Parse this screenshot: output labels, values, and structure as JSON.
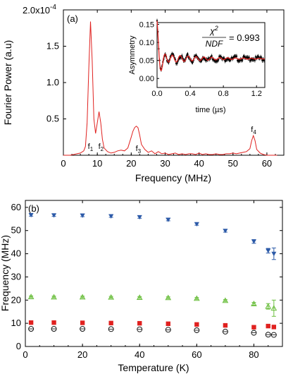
{
  "chart_data": [
    {
      "panel": "(a)",
      "type": "line",
      "xlabel": "Frequency (MHz)",
      "ylabel": "Fourier Power (a.u)",
      "xlim": [
        0,
        65
      ],
      "ylim": [
        0,
        2.0
      ],
      "y_multiplier": "×10^-4",
      "y_multiplier_label": "-4",
      "y_top_label": "2.0x10",
      "xticks": [
        "0",
        "10",
        "20",
        "30",
        "40",
        "50",
        "60"
      ],
      "yticks": [
        "0.5",
        "1.0",
        "1.5"
      ],
      "color": "#e0211f",
      "x": [
        0,
        1,
        2,
        3,
        4,
        5,
        6,
        6.5,
        7,
        7.5,
        8,
        8.5,
        9,
        9.5,
        10,
        10.5,
        11,
        11.5,
        12,
        13,
        14,
        15,
        16,
        17,
        18,
        19,
        20,
        20.5,
        21,
        21.5,
        22,
        22.5,
        23,
        24,
        25,
        26,
        27,
        28,
        29,
        30,
        31,
        32,
        33,
        34,
        35,
        36,
        37,
        38,
        39,
        40,
        41,
        42,
        43,
        44,
        45,
        46,
        47,
        48,
        49,
        50,
        51,
        52,
        53,
        54,
        55,
        55.5,
        56,
        56.5,
        57,
        58,
        59,
        60,
        61,
        62,
        63
      ],
      "y": [
        0,
        0,
        0,
        0.01,
        0.02,
        0.03,
        0.06,
        0.12,
        0.45,
        1.2,
        1.84,
        1.3,
        0.5,
        0.3,
        0.45,
        0.6,
        0.45,
        0.22,
        0.1,
        0.05,
        0.03,
        0.04,
        0.06,
        0.07,
        0.06,
        0.1,
        0.25,
        0.33,
        0.38,
        0.4,
        0.38,
        0.28,
        0.15,
        0.08,
        0.04,
        0.06,
        0.02,
        0.05,
        0.02,
        0.03,
        0.01,
        0.02,
        0.03,
        0.01,
        0.02,
        0.01,
        0.02,
        0.02,
        0.01,
        0.03,
        0.01,
        0.02,
        0.01,
        0.01,
        0.02,
        0.01,
        0.01,
        0.02,
        0.02,
        0.03,
        0.02,
        0.03,
        0.04,
        0.05,
        0.09,
        0.2,
        0.27,
        0.2,
        0.08,
        0.03,
        0.01,
        0,
        0,
        0,
        0
      ],
      "annotations": [
        {
          "label": "f",
          "sub": "1",
          "x": 7.2,
          "y": 0.07
        },
        {
          "label": "f",
          "sub": "2",
          "x": 10.3,
          "y": 0.07
        },
        {
          "label": "f",
          "sub": "3",
          "x": 21.3,
          "y": 0.04
        },
        {
          "label": "f",
          "sub": "4",
          "x": 55.3,
          "y": 0.3
        }
      ],
      "inset": {
        "type": "scatter-with-fit",
        "xlabel": "time (µs)",
        "ylabel": "Asymmetry",
        "xlim": [
          0,
          1.3
        ],
        "ylim": [
          -0.025,
          0.155
        ],
        "xticks": [
          "0.0",
          "0.4",
          "0.8",
          "1.2"
        ],
        "yticks": [
          "0.00",
          "0.05",
          "0.10",
          "0.15"
        ],
        "chi_label_num": "χ",
        "chi_label_sup": "2",
        "chi_label_den": "NDF",
        "chi_value": "= 0.993",
        "data_color": "#000000",
        "fit_color": "#e0211f"
      }
    },
    {
      "panel": "(b)",
      "type": "scatter",
      "xlabel": "Temperature (K)",
      "ylabel": "Frequency (MHz)",
      "xlim": [
        0,
        90
      ],
      "ylim": [
        0,
        63
      ],
      "xticks": [
        "0",
        "20",
        "40",
        "60",
        "80"
      ],
      "yticks": [
        "0",
        "10",
        "20",
        "30",
        "40",
        "50",
        "60"
      ],
      "series": [
        {
          "marker": "triangle-down-filled",
          "color": "#2c5aa8",
          "x": [
            2,
            10,
            20,
            30,
            40,
            50,
            60,
            70,
            80,
            85,
            87
          ],
          "y": [
            56.7,
            56.6,
            56.5,
            56.2,
            55.8,
            54.7,
            52.8,
            49.9,
            45.3,
            41.3,
            40
          ],
          "err": [
            0.5,
            0.5,
            0.5,
            0.5,
            0.5,
            0.5,
            0.5,
            0.6,
            0.8,
            1,
            2.5
          ]
        },
        {
          "marker": "triangle-up-open",
          "color": "#6cbf3f",
          "x": [
            2,
            10,
            20,
            30,
            40,
            50,
            60,
            70,
            80,
            85,
            87
          ],
          "y": [
            21.4,
            21.3,
            21.3,
            21.2,
            21.1,
            21,
            20.7,
            19.8,
            18.4,
            17.3,
            16.5
          ],
          "err": [
            0.4,
            0.4,
            0.4,
            0.4,
            0.4,
            0.4,
            0.4,
            0.4,
            0.6,
            1.2,
            3.5
          ]
        },
        {
          "marker": "square-filled",
          "color": "#e0211f",
          "x": [
            2,
            10,
            20,
            30,
            40,
            50,
            60,
            70,
            80,
            85,
            87
          ],
          "y": [
            10.3,
            10.3,
            10.2,
            10.1,
            10,
            9.8,
            9.5,
            9.1,
            8.3,
            8.8,
            8.4
          ],
          "err": [
            0.2,
            0.2,
            0.2,
            0.2,
            0.2,
            0.2,
            0.2,
            0.2,
            0.2,
            0.2,
            0.2
          ]
        },
        {
          "marker": "circle-open",
          "color": "#000000",
          "x": [
            2,
            10,
            20,
            30,
            40,
            50,
            60,
            70,
            80,
            85,
            87
          ],
          "y": [
            7.6,
            7.6,
            7.6,
            7.5,
            7.4,
            7.2,
            7,
            6.4,
            5.9,
            5.1,
            5
          ],
          "err": [
            0.2,
            0.2,
            0.2,
            0.2,
            0.2,
            0.2,
            0.2,
            0.2,
            0.2,
            0.2,
            0.2
          ]
        }
      ]
    }
  ]
}
